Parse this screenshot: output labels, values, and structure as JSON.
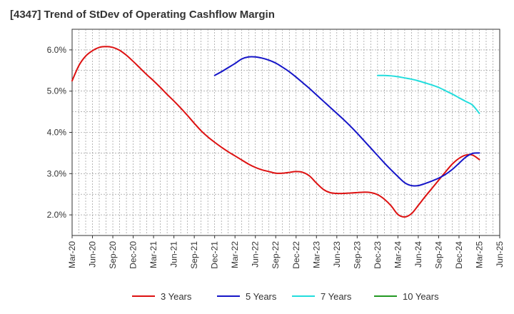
{
  "title": "[4347]  Trend of StDev of Operating Cashflow Margin",
  "chart_data": {
    "type": "line",
    "title": "[4347]  Trend of StDev of Operating Cashflow Margin",
    "xlabel": "",
    "ylabel": "",
    "ylim": [
      1.5,
      6.5
    ],
    "y_ticks": [
      2.0,
      3.0,
      4.0,
      5.0,
      6.0
    ],
    "y_tick_labels": [
      "2.0%",
      "3.0%",
      "4.0%",
      "5.0%",
      "6.0%"
    ],
    "x_ticks": [
      "Mar-20",
      "Jun-20",
      "Sep-20",
      "Dec-20",
      "Mar-21",
      "Jun-21",
      "Sep-21",
      "Dec-21",
      "Mar-22",
      "Jun-22",
      "Sep-22",
      "Dec-22",
      "Mar-23",
      "Jun-23",
      "Sep-23",
      "Dec-23",
      "Mar-24",
      "Jun-24",
      "Sep-24",
      "Dec-24",
      "Mar-25",
      "Jun-25"
    ],
    "grid": true,
    "legend_position": "bottom",
    "series": [
      {
        "name": "3 Years",
        "color": "#dd1111",
        "x": [
          "2020-03",
          "2020-04",
          "2020-05",
          "2020-06",
          "2020-07",
          "2020-08",
          "2020-09",
          "2020-10",
          "2020-11",
          "2020-12",
          "2021-01",
          "2021-02",
          "2021-03",
          "2021-04",
          "2021-05",
          "2021-06",
          "2021-07",
          "2021-08",
          "2021-09",
          "2021-10",
          "2021-11",
          "2021-12",
          "2022-01",
          "2022-02",
          "2022-03",
          "2022-04",
          "2022-05",
          "2022-06",
          "2022-07",
          "2022-08",
          "2022-09",
          "2022-10",
          "2022-11",
          "2022-12",
          "2023-01",
          "2023-02",
          "2023-03",
          "2023-04",
          "2023-05",
          "2023-06",
          "2023-07",
          "2023-08",
          "2023-09",
          "2023-10",
          "2023-11",
          "2023-12",
          "2024-01",
          "2024-02",
          "2024-03",
          "2024-04",
          "2024-05",
          "2024-06",
          "2024-07",
          "2024-08",
          "2024-09",
          "2024-10",
          "2024-11",
          "2024-12",
          "2025-01",
          "2025-02",
          "2025-03"
        ],
        "values": [
          5.25,
          5.62,
          5.85,
          5.98,
          6.06,
          6.08,
          6.06,
          5.99,
          5.87,
          5.72,
          5.56,
          5.4,
          5.25,
          5.09,
          4.92,
          4.76,
          4.59,
          4.41,
          4.22,
          4.04,
          3.89,
          3.76,
          3.64,
          3.53,
          3.43,
          3.33,
          3.23,
          3.15,
          3.09,
          3.05,
          3.01,
          3.01,
          3.03,
          3.05,
          3.03,
          2.94,
          2.77,
          2.62,
          2.54,
          2.52,
          2.52,
          2.53,
          2.54,
          2.55,
          2.54,
          2.49,
          2.38,
          2.22,
          2.01,
          1.95,
          2.03,
          2.23,
          2.44,
          2.64,
          2.84,
          3.04,
          3.23,
          3.37,
          3.45,
          3.45,
          3.34
        ]
      },
      {
        "name": "5 Years",
        "color": "#1515c8",
        "x": [
          "2021-12",
          "2022-01",
          "2022-02",
          "2022-03",
          "2022-04",
          "2022-05",
          "2022-06",
          "2022-07",
          "2022-08",
          "2022-09",
          "2022-10",
          "2022-11",
          "2022-12",
          "2023-01",
          "2023-02",
          "2023-03",
          "2023-04",
          "2023-05",
          "2023-06",
          "2023-07",
          "2023-08",
          "2023-09",
          "2023-10",
          "2023-11",
          "2023-12",
          "2024-01",
          "2024-02",
          "2024-03",
          "2024-04",
          "2024-05",
          "2024-06",
          "2024-07",
          "2024-08",
          "2024-09",
          "2024-10",
          "2024-11",
          "2024-12",
          "2025-01",
          "2025-02",
          "2025-03"
        ],
        "values": [
          5.38,
          5.47,
          5.57,
          5.67,
          5.78,
          5.83,
          5.83,
          5.8,
          5.75,
          5.68,
          5.58,
          5.47,
          5.34,
          5.2,
          5.06,
          4.91,
          4.76,
          4.61,
          4.46,
          4.31,
          4.15,
          3.98,
          3.8,
          3.62,
          3.44,
          3.26,
          3.09,
          2.93,
          2.78,
          2.71,
          2.71,
          2.76,
          2.82,
          2.89,
          2.98,
          3.1,
          3.25,
          3.4,
          3.49,
          3.5
        ]
      },
      {
        "name": "7 Years",
        "color": "#22dddd",
        "x": [
          "2023-12",
          "2024-01",
          "2024-02",
          "2024-03",
          "2024-04",
          "2024-05",
          "2024-06",
          "2024-07",
          "2024-08",
          "2024-09",
          "2024-10",
          "2024-11",
          "2024-12",
          "2025-01",
          "2025-02",
          "2025-03"
        ],
        "values": [
          5.38,
          5.38,
          5.37,
          5.35,
          5.32,
          5.29,
          5.25,
          5.2,
          5.15,
          5.09,
          5.01,
          4.93,
          4.84,
          4.75,
          4.66,
          4.46
        ]
      },
      {
        "name": "10 Years",
        "color": "#229922",
        "x": [],
        "values": []
      }
    ]
  }
}
